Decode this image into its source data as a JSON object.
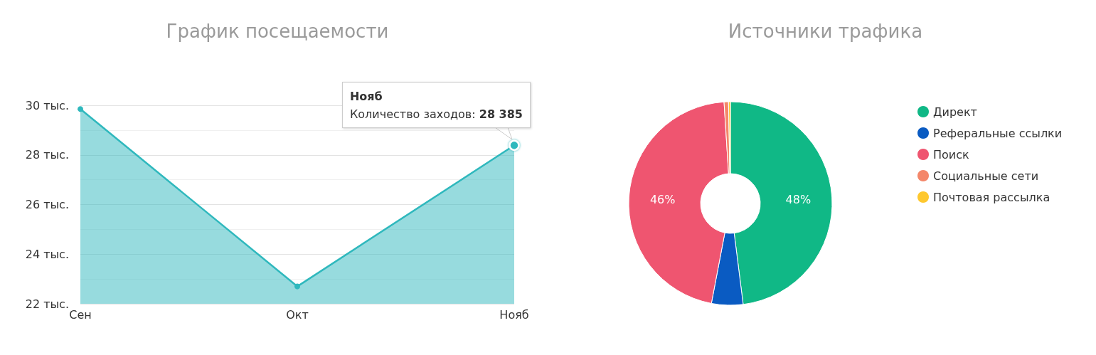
{
  "chart_data": [
    {
      "type": "area",
      "title": "График посещаемости",
      "categories": [
        "Сен",
        "Окт",
        "Нояб"
      ],
      "series": [
        {
          "color": "#2fb8bd",
          "values": [
            29.85,
            22.7,
            28.385
          ]
        }
      ],
      "ylim": [
        22,
        30
      ],
      "yticks": [
        {
          "value": 22,
          "label": "22 тыс."
        },
        {
          "value": 23,
          "label": null
        },
        {
          "value": 24,
          "label": "24 тыс."
        },
        {
          "value": 25,
          "label": null
        },
        {
          "value": 26,
          "label": "26 тыс."
        },
        {
          "value": 27,
          "label": null
        },
        {
          "value": 28,
          "label": "28 тыс."
        },
        {
          "value": 29,
          "label": null
        },
        {
          "value": 30,
          "label": "30 тыс."
        }
      ],
      "grid": "y",
      "marker": "circle",
      "line_style": "solid",
      "annotations": [
        {
          "text": "Нояб\nКоличество заходов: 28 385",
          "x": "Нояб",
          "y": 28.385
        }
      ]
    },
    {
      "type": "donut",
      "title": "Источники трафика",
      "categories": [
        "Директ",
        "Реферальные ссылки",
        "Поиск",
        "Социальные сети",
        "Почтовая рассылка"
      ],
      "values": [
        48,
        5,
        46,
        0.7,
        0.3
      ],
      "colors": [
        "#10b886",
        "#0a5bc2",
        "#ef5570",
        "#f4876a",
        "#fec82f"
      ],
      "value_labels": [
        "48%",
        null,
        "46%",
        null,
        null
      ],
      "legend": "right"
    }
  ]
}
